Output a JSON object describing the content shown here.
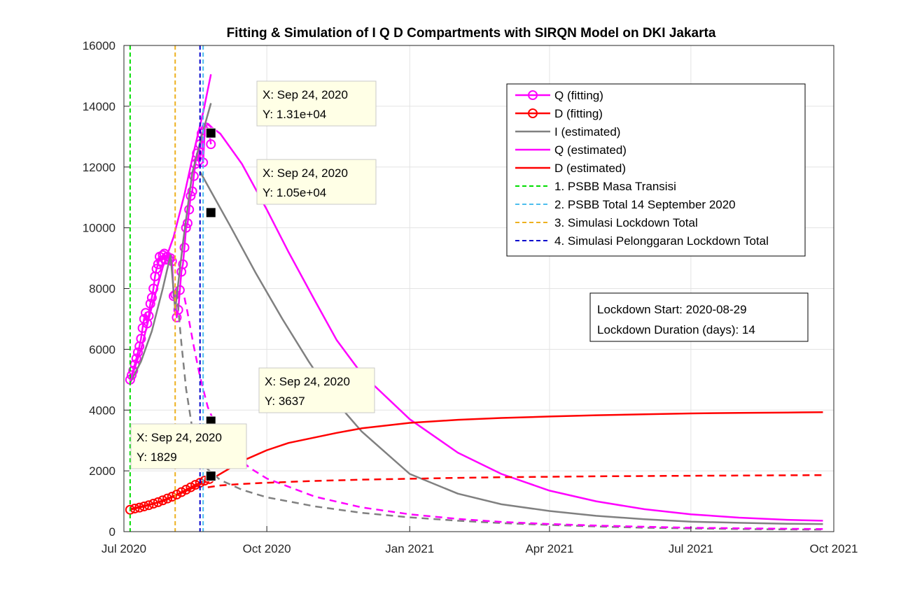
{
  "chart_data": {
    "type": "line",
    "title": "Fitting & Simulation of  I Q D Compartments with SIRQN Model on DKI Jakarta",
    "xlabel": "",
    "ylabel": "",
    "x_type": "date",
    "xlim": [
      "2020-07-01",
      "2021-10-01"
    ],
    "ylim": [
      0,
      16000
    ],
    "grid": true,
    "legend_position": "top-right",
    "x_ticks": [
      {
        "date": "2020-07-01",
        "label": "Jul 2020"
      },
      {
        "date": "2020-10-01",
        "label": "Oct 2020"
      },
      {
        "date": "2021-01-01",
        "label": "Jan 2021"
      },
      {
        "date": "2021-04-01",
        "label": "Apr 2021"
      },
      {
        "date": "2021-07-01",
        "label": "Jul 2021"
      },
      {
        "date": "2021-10-01",
        "label": "Oct 2021"
      }
    ],
    "y_ticks": [
      0,
      2000,
      4000,
      6000,
      8000,
      10000,
      12000,
      14000,
      16000
    ],
    "series": [
      {
        "name": "Q (fitting)",
        "kind": "marker-line",
        "color": "#ff00ff",
        "points": [
          [
            "2020-07-05",
            5000
          ],
          [
            "2020-07-06",
            5150
          ],
          [
            "2020-07-07",
            5300
          ],
          [
            "2020-07-08",
            5500
          ],
          [
            "2020-07-09",
            5700
          ],
          [
            "2020-07-10",
            5900
          ],
          [
            "2020-07-11",
            6100
          ],
          [
            "2020-07-12",
            6350
          ],
          [
            "2020-07-13",
            6700
          ],
          [
            "2020-07-14",
            7000
          ],
          [
            "2020-07-15",
            7200
          ],
          [
            "2020-07-16",
            6850
          ],
          [
            "2020-07-17",
            7100
          ],
          [
            "2020-07-18",
            7500
          ],
          [
            "2020-07-19",
            7700
          ],
          [
            "2020-07-20",
            8000
          ],
          [
            "2020-07-21",
            8400
          ],
          [
            "2020-07-22",
            8650
          ],
          [
            "2020-07-23",
            8800
          ],
          [
            "2020-07-24",
            9050
          ],
          [
            "2020-07-25",
            8900
          ],
          [
            "2020-07-26",
            9100
          ],
          [
            "2020-07-27",
            9150
          ],
          [
            "2020-07-28",
            8950
          ],
          [
            "2020-07-29",
            9050
          ],
          [
            "2020-07-30",
            8950
          ],
          [
            "2020-07-31",
            9000
          ],
          [
            "2020-08-01",
            8900
          ],
          [
            "2020-08-02",
            7750
          ],
          [
            "2020-08-03",
            7800
          ],
          [
            "2020-08-04",
            7050
          ],
          [
            "2020-08-05",
            7300
          ],
          [
            "2020-08-06",
            7950
          ],
          [
            "2020-08-07",
            8550
          ],
          [
            "2020-08-08",
            8800
          ],
          [
            "2020-08-09",
            9350
          ],
          [
            "2020-08-10",
            10000
          ],
          [
            "2020-08-11",
            10150
          ],
          [
            "2020-08-12",
            10600
          ],
          [
            "2020-08-13",
            11050
          ],
          [
            "2020-08-14",
            11200
          ],
          [
            "2020-08-15",
            11700
          ],
          [
            "2020-08-16",
            12100
          ],
          [
            "2020-08-17",
            12450
          ],
          [
            "2020-08-18",
            12200
          ],
          [
            "2020-08-19",
            12750
          ],
          [
            "2020-08-20",
            13100
          ],
          [
            "2020-08-21",
            12150
          ],
          [
            "2020-08-22",
            13200
          ],
          [
            "2020-08-23",
            13300
          ],
          [
            "2020-08-24",
            13250
          ],
          [
            "2020-08-25",
            13100
          ],
          [
            "2020-08-26",
            12750
          ]
        ]
      },
      {
        "name": "D (fitting)",
        "kind": "marker-line",
        "color": "#ff0000",
        "points": [
          [
            "2020-07-05",
            720
          ],
          [
            "2020-07-08",
            760
          ],
          [
            "2020-07-11",
            790
          ],
          [
            "2020-07-14",
            830
          ],
          [
            "2020-07-17",
            870
          ],
          [
            "2020-07-20",
            920
          ],
          [
            "2020-07-23",
            970
          ],
          [
            "2020-07-26",
            1030
          ],
          [
            "2020-07-29",
            1090
          ],
          [
            "2020-08-01",
            1150
          ],
          [
            "2020-08-04",
            1220
          ],
          [
            "2020-08-07",
            1300
          ],
          [
            "2020-08-10",
            1380
          ],
          [
            "2020-08-13",
            1460
          ],
          [
            "2020-08-16",
            1540
          ],
          [
            "2020-08-19",
            1610
          ],
          [
            "2020-08-22",
            1680
          ],
          [
            "2020-08-25",
            1730
          ]
        ]
      },
      {
        "name": "I (estimated)",
        "kind": "line",
        "color": "#808080",
        "points": [
          [
            "2020-07-05",
            4900
          ],
          [
            "2020-07-12",
            5600
          ],
          [
            "2020-07-19",
            6600
          ],
          [
            "2020-07-26",
            8000
          ],
          [
            "2020-07-31",
            9100
          ],
          [
            "2020-08-03",
            7300
          ],
          [
            "2020-08-08",
            9500
          ],
          [
            "2020-08-14",
            11800
          ],
          [
            "2020-08-20",
            13000
          ],
          [
            "2020-08-26",
            14100
          ]
        ]
      },
      {
        "name": "Q (estimated)",
        "kind": "line",
        "color": "#ff00ff",
        "points": [
          [
            "2020-07-05",
            4950
          ],
          [
            "2020-07-12",
            6000
          ],
          [
            "2020-07-19",
            7400
          ],
          [
            "2020-07-26",
            8700
          ],
          [
            "2020-08-02",
            9700
          ],
          [
            "2020-08-09",
            11100
          ],
          [
            "2020-08-15",
            12500
          ],
          [
            "2020-08-21",
            13800
          ],
          [
            "2020-08-26",
            15050
          ]
        ]
      },
      {
        "name": "D (estimated)",
        "kind": "line",
        "color": "#ff0000",
        "points": [
          [
            "2020-07-05",
            740
          ],
          [
            "2020-07-26",
            1000
          ],
          [
            "2020-08-15",
            1450
          ],
          [
            "2020-08-26",
            1720
          ]
        ]
      },
      {
        "name": "",
        "kind": "line",
        "color": "#808080",
        "points": [
          [
            "2020-08-19",
            11850
          ],
          [
            "2020-08-26",
            11200
          ],
          [
            "2020-09-07",
            10100
          ],
          [
            "2020-09-24",
            8500
          ],
          [
            "2020-10-11",
            7000
          ],
          [
            "2020-10-28",
            5600
          ],
          [
            "2020-11-14",
            4300
          ],
          [
            "2020-12-01",
            3300
          ],
          [
            "2021-01-01",
            1900
          ],
          [
            "2021-02-01",
            1250
          ],
          [
            "2021-03-01",
            900
          ],
          [
            "2021-04-01",
            680
          ],
          [
            "2021-05-01",
            520
          ],
          [
            "2021-06-01",
            410
          ],
          [
            "2021-07-01",
            330
          ],
          [
            "2021-08-01",
            290
          ],
          [
            "2021-09-01",
            260
          ],
          [
            "2021-09-24",
            250
          ]
        ]
      },
      {
        "name": "",
        "kind": "line",
        "color": "#ff00ff",
        "points": [
          [
            "2020-08-24",
            13400
          ],
          [
            "2020-09-01",
            13100
          ],
          [
            "2020-09-15",
            12100
          ],
          [
            "2020-10-01",
            10600
          ],
          [
            "2020-10-15",
            9200
          ],
          [
            "2020-11-01",
            7600
          ],
          [
            "2020-11-15",
            6300
          ],
          [
            "2020-12-01",
            5200
          ],
          [
            "2021-01-01",
            3700
          ],
          [
            "2021-02-01",
            2600
          ],
          [
            "2021-03-01",
            1900
          ],
          [
            "2021-04-01",
            1350
          ],
          [
            "2021-05-01",
            1000
          ],
          [
            "2021-06-01",
            740
          ],
          [
            "2021-07-01",
            570
          ],
          [
            "2021-08-01",
            460
          ],
          [
            "2021-09-01",
            390
          ],
          [
            "2021-09-24",
            360
          ]
        ]
      },
      {
        "name": "",
        "kind": "line",
        "color": "#ff0000",
        "points": [
          [
            "2020-08-26",
            1720
          ],
          [
            "2020-09-05",
            2020
          ],
          [
            "2020-09-15",
            2320
          ],
          [
            "2020-10-01",
            2680
          ],
          [
            "2020-10-15",
            2920
          ],
          [
            "2020-11-01",
            3100
          ],
          [
            "2020-11-15",
            3250
          ],
          [
            "2020-12-01",
            3400
          ],
          [
            "2021-01-01",
            3580
          ],
          [
            "2021-02-01",
            3680
          ],
          [
            "2021-03-01",
            3740
          ],
          [
            "2021-04-01",
            3790
          ],
          [
            "2021-05-01",
            3830
          ],
          [
            "2021-06-01",
            3860
          ],
          [
            "2021-07-01",
            3890
          ],
          [
            "2021-08-01",
            3910
          ],
          [
            "2021-09-01",
            3920
          ],
          [
            "2021-09-24",
            3930
          ]
        ]
      },
      {
        "name": "",
        "kind": "dashed",
        "color": "#808080",
        "points": [
          [
            "2020-08-04",
            7900
          ],
          [
            "2020-08-07",
            6200
          ],
          [
            "2020-08-10",
            4700
          ],
          [
            "2020-08-14",
            3400
          ],
          [
            "2020-08-18",
            2600
          ],
          [
            "2020-08-24",
            2050
          ],
          [
            "2020-09-01",
            1700
          ],
          [
            "2020-09-15",
            1380
          ],
          [
            "2020-10-01",
            1130
          ],
          [
            "2020-11-01",
            830
          ],
          [
            "2020-12-01",
            620
          ],
          [
            "2021-01-01",
            470
          ],
          [
            "2021-02-01",
            360
          ],
          [
            "2021-03-01",
            280
          ],
          [
            "2021-04-01",
            220
          ],
          [
            "2021-05-01",
            170
          ],
          [
            "2021-06-01",
            130
          ],
          [
            "2021-07-01",
            105
          ],
          [
            "2021-08-01",
            85
          ],
          [
            "2021-09-01",
            72
          ],
          [
            "2021-09-24",
            65
          ]
        ]
      },
      {
        "name": "",
        "kind": "dashed",
        "color": "#ff00ff",
        "points": [
          [
            "2020-08-09",
            7700
          ],
          [
            "2020-08-11",
            7200
          ],
          [
            "2020-08-15",
            6100
          ],
          [
            "2020-08-19",
            5100
          ],
          [
            "2020-08-24",
            4100
          ],
          [
            "2020-09-01",
            3150
          ],
          [
            "2020-09-10",
            2550
          ],
          [
            "2020-09-20",
            2100
          ],
          [
            "2020-10-01",
            1750
          ],
          [
            "2020-11-01",
            1150
          ],
          [
            "2020-12-01",
            800
          ],
          [
            "2021-01-01",
            570
          ],
          [
            "2021-02-01",
            420
          ],
          [
            "2021-03-01",
            320
          ],
          [
            "2021-04-01",
            250
          ],
          [
            "2021-05-01",
            200
          ],
          [
            "2021-06-01",
            160
          ],
          [
            "2021-07-01",
            130
          ],
          [
            "2021-08-01",
            110
          ],
          [
            "2021-09-01",
            95
          ],
          [
            "2021-09-24",
            85
          ]
        ]
      },
      {
        "name": "",
        "kind": "dashed",
        "color": "#ff0000",
        "points": [
          [
            "2020-08-24",
            1460
          ],
          [
            "2020-09-01",
            1520
          ],
          [
            "2020-09-15",
            1570
          ],
          [
            "2020-10-01",
            1610
          ],
          [
            "2020-11-01",
            1670
          ],
          [
            "2020-12-01",
            1710
          ],
          [
            "2021-01-01",
            1740
          ],
          [
            "2021-02-01",
            1770
          ],
          [
            "2021-03-01",
            1790
          ],
          [
            "2021-05-01",
            1820
          ],
          [
            "2021-07-01",
            1840
          ],
          [
            "2021-09-24",
            1860
          ]
        ]
      },
      {
        "name": "1. PSBB Masa Transisi",
        "kind": "vline",
        "color": "#00dd00",
        "date": "2020-07-05"
      },
      {
        "name": "2. PSBB Total 14 September 2020",
        "kind": "vline",
        "color": "#4dbeee",
        "date": "2020-08-21"
      },
      {
        "name": "3. Simulasi Lockdown Total",
        "kind": "vline",
        "color": "#edb120",
        "date": "2020-08-03"
      },
      {
        "name": "4. Simulasi Pelonggaran Lockdown Total",
        "kind": "vline",
        "color": "#0000cd",
        "date": "2020-08-19"
      }
    ],
    "datatips": [
      {
        "date": "2020-08-26",
        "y": 13118,
        "x_text": "X: Sep 24, 2020",
        "y_text": "Y: 1.31e+04",
        "box_side": "right"
      },
      {
        "date": "2020-08-26",
        "y": 10500,
        "x_text": "X: Sep 24, 2020",
        "y_text": "Y: 1.05e+04",
        "box_side": "right"
      },
      {
        "date": "2020-08-26",
        "y": 3637,
        "x_text": "X: Sep 24, 2020",
        "y_text": "Y: 3637",
        "box_side": "right"
      },
      {
        "date": "2020-08-26",
        "y": 1829,
        "x_text": "X: Sep 24, 2020",
        "y_text": "Y: 1829",
        "box_side": "left"
      }
    ],
    "annotation": {
      "line1": "Lockdown Start: 2020-08-29",
      "line2": "Lockdown Duration (days): 14"
    }
  }
}
